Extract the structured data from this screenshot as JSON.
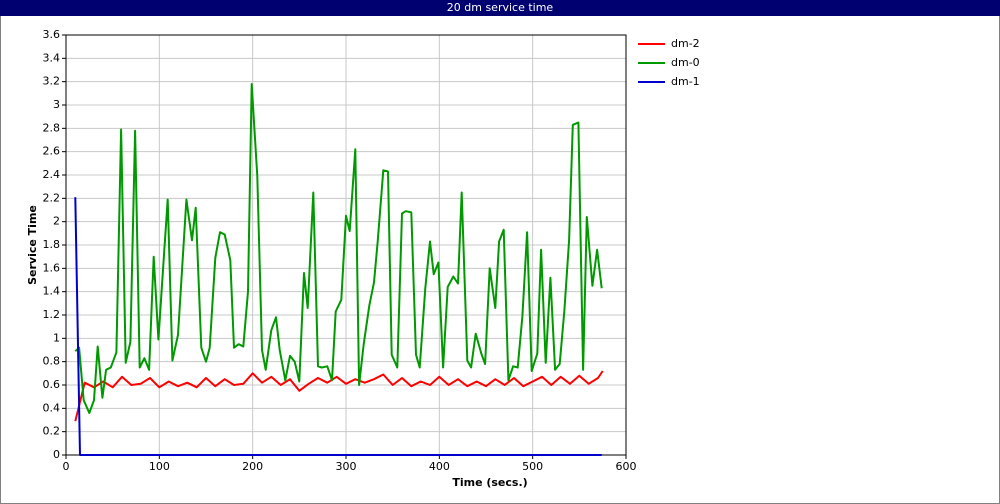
{
  "chart_data": {
    "type": "line",
    "title": "20 dm service time",
    "x_label": "Time (secs.)",
    "y_label": "Service Time",
    "xlim": [
      0,
      600
    ],
    "xticks": [
      0,
      100,
      200,
      300,
      400,
      500,
      600
    ],
    "ylim": [
      0,
      3.6
    ],
    "yticks": [
      0,
      0.2,
      0.4,
      0.6,
      0.8,
      1,
      1.2,
      1.4,
      1.6,
      1.8,
      2,
      2.2,
      2.4,
      2.6,
      2.8,
      3,
      3.2,
      3.4,
      3.6
    ],
    "grid": true,
    "legend": "right",
    "series": [
      {
        "name": "dm-2",
        "color": "#ff0000",
        "x": [
          10,
          20,
          30,
          40,
          50,
          60,
          70,
          80,
          90,
          100,
          110,
          120,
          130,
          140,
          150,
          160,
          170,
          180,
          190,
          200,
          210,
          220,
          230,
          240,
          250,
          260,
          270,
          280,
          290,
          300,
          310,
          320,
          330,
          340,
          350,
          360,
          370,
          380,
          390,
          400,
          410,
          420,
          430,
          440,
          450,
          460,
          470,
          480,
          490,
          500,
          510,
          520,
          530,
          540,
          550,
          560,
          570,
          575
        ],
        "values": [
          0.29,
          0.62,
          0.58,
          0.63,
          0.58,
          0.67,
          0.6,
          0.61,
          0.66,
          0.58,
          0.63,
          0.59,
          0.62,
          0.58,
          0.66,
          0.59,
          0.65,
          0.6,
          0.61,
          0.7,
          0.62,
          0.67,
          0.6,
          0.65,
          0.55,
          0.61,
          0.66,
          0.62,
          0.67,
          0.61,
          0.65,
          0.62,
          0.65,
          0.69,
          0.6,
          0.66,
          0.59,
          0.63,
          0.6,
          0.67,
          0.6,
          0.65,
          0.59,
          0.63,
          0.59,
          0.65,
          0.6,
          0.66,
          0.59,
          0.63,
          0.67,
          0.6,
          0.67,
          0.61,
          0.68,
          0.61,
          0.66,
          0.72
        ]
      },
      {
        "name": "dm-0",
        "color": "#009900",
        "x": [
          10,
          14,
          19,
          25,
          30,
          34,
          39,
          43,
          48,
          54,
          59,
          64,
          69,
          74,
          79,
          84,
          89,
          94,
          99,
          104,
          109,
          114,
          120,
          129,
          135,
          139,
          145,
          150,
          154,
          160,
          165,
          170,
          176,
          180,
          185,
          190,
          195,
          199,
          205,
          210,
          214,
          220,
          225,
          229,
          235,
          240,
          245,
          250,
          255,
          259,
          265,
          270,
          274,
          280,
          285,
          289,
          295,
          300,
          304,
          310,
          314,
          319,
          325,
          330,
          334,
          340,
          345,
          349,
          355,
          360,
          364,
          370,
          375,
          379,
          385,
          390,
          394,
          399,
          404,
          409,
          415,
          420,
          424,
          430,
          434,
          439,
          445,
          449,
          454,
          460,
          464,
          469,
          474,
          479,
          484,
          489,
          494,
          499,
          505,
          509,
          514,
          519,
          524,
          529,
          534,
          539,
          543,
          549,
          554,
          558,
          564,
          569,
          574
        ],
        "values": [
          0.89,
          0.92,
          0.47,
          0.36,
          0.47,
          0.93,
          0.49,
          0.73,
          0.75,
          0.88,
          2.79,
          0.79,
          0.97,
          2.78,
          0.75,
          0.83,
          0.73,
          1.7,
          0.99,
          1.6,
          2.19,
          0.81,
          1.03,
          2.19,
          1.84,
          2.12,
          0.92,
          0.8,
          0.92,
          1.69,
          1.91,
          1.89,
          1.67,
          0.92,
          0.95,
          0.93,
          1.4,
          3.18,
          2.39,
          0.9,
          0.73,
          1.07,
          1.18,
          0.9,
          0.64,
          0.85,
          0.8,
          0.63,
          1.56,
          1.26,
          2.25,
          0.76,
          0.75,
          0.76,
          0.64,
          1.23,
          1.33,
          2.05,
          1.92,
          2.62,
          0.6,
          0.95,
          1.28,
          1.48,
          1.83,
          2.44,
          2.43,
          0.86,
          0.75,
          2.07,
          2.09,
          2.08,
          0.86,
          0.75,
          1.43,
          1.83,
          1.55,
          1.65,
          0.75,
          1.44,
          1.53,
          1.47,
          2.25,
          0.81,
          0.75,
          1.04,
          0.87,
          0.78,
          1.6,
          1.26,
          1.83,
          1.93,
          0.64,
          0.76,
          0.75,
          1.19,
          1.91,
          0.72,
          0.87,
          1.76,
          0.79,
          1.52,
          0.73,
          0.78,
          1.24,
          1.84,
          2.83,
          2.85,
          0.73,
          2.04,
          1.45,
          1.76,
          1.43
        ]
      },
      {
        "name": "dm-1",
        "color": "#0000cc",
        "x": [
          10,
          15,
          574
        ],
        "values": [
          2.21,
          0,
          0
        ]
      }
    ]
  }
}
